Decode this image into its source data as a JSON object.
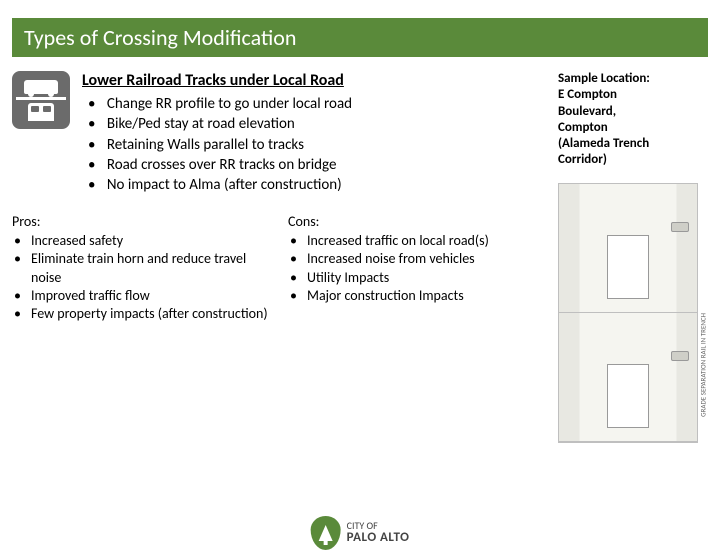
{
  "title": "Types of Crossing Modification",
  "intro": {
    "heading": "Lower Railroad Tracks under Local Road",
    "bullets": [
      "Change RR profile to go under local road",
      "Bike/Ped stay at road elevation",
      "Retaining Walls parallel to tracks",
      "Road crosses over RR tracks on bridge",
      "No impact to Alma (after construction)"
    ]
  },
  "pros": {
    "label": "Pros:",
    "items": [
      "Increased safety",
      "Eliminate train horn and reduce travel noise",
      "Improved traffic flow",
      "Few property impacts (after construction)"
    ]
  },
  "cons": {
    "label": "Cons:",
    "items": [
      "Increased traffic on local road(s)",
      "Increased noise from vehicles",
      "Utility Impacts",
      "Major construction Impacts"
    ]
  },
  "sample": {
    "lines": [
      "Sample Location:",
      "E Compton",
      "Boulevard,",
      "Compton",
      "(Alameda Trench",
      "Corridor)"
    ]
  },
  "diagram_caption": "GRADE SEPARATION RAIL IN TRENCH",
  "logo": {
    "top": "CITY OF",
    "bottom": "PALO ALTO"
  },
  "colors": {
    "brand_green": "#5a8a3a",
    "icon_bg": "#6b6b6b"
  }
}
